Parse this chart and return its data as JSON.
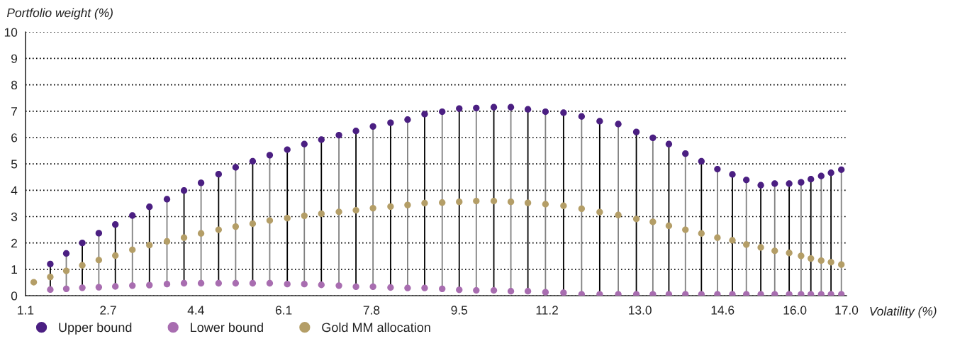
{
  "chart_data": {
    "type": "lollipop",
    "xlabel": "Volatility (%)",
    "ylabel": "Portfolio weight (%)",
    "x": [
      1.26,
      1.58,
      1.89,
      2.2,
      2.52,
      2.84,
      3.17,
      3.5,
      3.84,
      4.17,
      4.5,
      4.84,
      5.17,
      5.5,
      5.83,
      6.17,
      6.5,
      6.83,
      7.17,
      7.5,
      7.83,
      8.17,
      8.5,
      8.83,
      9.17,
      9.5,
      9.83,
      10.17,
      10.5,
      10.83,
      11.17,
      11.52,
      11.87,
      12.22,
      12.58,
      12.93,
      13.25,
      13.56,
      13.88,
      14.19,
      14.5,
      14.79,
      15.06,
      15.34,
      15.61,
      15.89,
      16.12,
      16.31,
      16.51,
      16.7,
      16.9
    ],
    "series": [
      {
        "name": "Upper bound",
        "color": "#4b1f82",
        "values": [
          null,
          1.2,
          1.6,
          2.0,
          2.37,
          2.7,
          3.04,
          3.37,
          3.66,
          3.99,
          4.28,
          4.61,
          4.87,
          5.1,
          5.33,
          5.54,
          5.75,
          5.92,
          6.09,
          6.25,
          6.42,
          6.56,
          6.68,
          6.89,
          6.98,
          7.1,
          7.12,
          7.15,
          7.15,
          7.07,
          6.98,
          6.94,
          6.8,
          6.62,
          6.51,
          6.21,
          5.99,
          5.75,
          5.39,
          5.1,
          4.8,
          4.6,
          4.39,
          4.19,
          4.25,
          4.25,
          4.3,
          4.42,
          4.54,
          4.66,
          4.78
        ]
      },
      {
        "name": "Lower bound",
        "color": "#a86db0",
        "values": [
          null,
          0.23,
          0.26,
          0.3,
          0.32,
          0.35,
          0.38,
          0.4,
          0.44,
          0.47,
          0.47,
          0.47,
          0.47,
          0.47,
          0.47,
          0.44,
          0.44,
          0.41,
          0.38,
          0.34,
          0.34,
          0.31,
          0.29,
          0.29,
          0.26,
          0.22,
          0.2,
          0.2,
          0.17,
          0.17,
          0.13,
          0.11,
          0.05,
          0.05,
          0.05,
          0.05,
          0.05,
          0.05,
          0.05,
          0.05,
          0.05,
          0.05,
          0.05,
          0.05,
          0.05,
          0.05,
          0.05,
          0.05,
          0.05,
          0.05,
          0.05
        ]
      },
      {
        "name": "Gold MM allocation",
        "color": "#b49e67",
        "values": [
          0.51,
          0.71,
          0.94,
          1.15,
          1.35,
          1.52,
          1.74,
          1.92,
          2.06,
          2.2,
          2.36,
          2.5,
          2.62,
          2.73,
          2.85,
          2.94,
          3.03,
          3.11,
          3.18,
          3.24,
          3.32,
          3.38,
          3.44,
          3.51,
          3.53,
          3.56,
          3.59,
          3.59,
          3.56,
          3.52,
          3.47,
          3.41,
          3.3,
          3.17,
          3.06,
          2.91,
          2.8,
          2.65,
          2.5,
          2.36,
          2.2,
          2.1,
          1.94,
          1.83,
          1.7,
          1.62,
          1.51,
          1.41,
          1.33,
          1.27,
          1.18
        ]
      }
    ],
    "xlim": [
      1.1,
      17.0
    ],
    "xticks": [
      {
        "value": 1.1,
        "label": "1.1"
      },
      {
        "value": 2.7,
        "label": "2.7"
      },
      {
        "value": 4.4,
        "label": "4.4"
      },
      {
        "value": 6.1,
        "label": "6.1"
      },
      {
        "value": 7.8,
        "label": "7.8"
      },
      {
        "value": 9.5,
        "label": "9.5"
      },
      {
        "value": 11.2,
        "label": "11.2"
      },
      {
        "value": 13.0,
        "label": "13.0"
      },
      {
        "value": 14.6,
        "label": "14.6"
      },
      {
        "value": 16.0,
        "label": "16.0"
      },
      {
        "value": 17.0,
        "label": "17.0"
      }
    ],
    "ylim": [
      0,
      10
    ],
    "yticks": [
      0,
      1,
      2,
      3,
      4,
      5,
      6,
      7,
      8,
      9,
      10
    ],
    "grid": "y",
    "legend": "bottom left",
    "marker": "circle"
  }
}
